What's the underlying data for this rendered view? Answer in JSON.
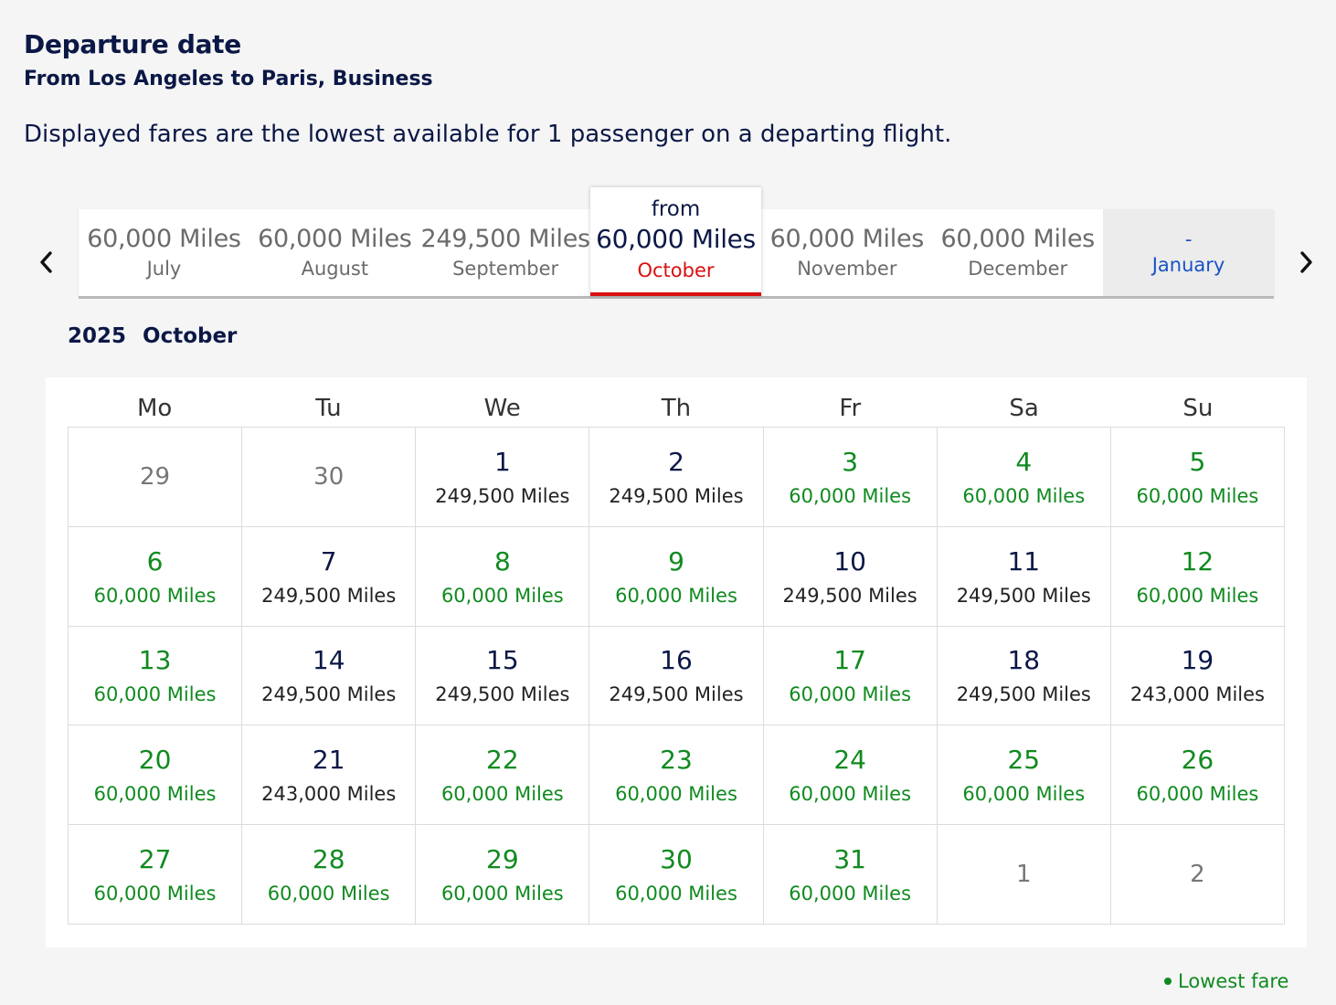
{
  "header": {
    "title": "Departure date",
    "subtitle": "From Los Angeles to Paris, Business",
    "note": "Displayed fares are the lowest available for 1 passenger on a departing flight."
  },
  "icons": {
    "prev": "chevron-left-icon",
    "next": "chevron-right-icon",
    "legend": "dot-icon"
  },
  "colors": {
    "lowest_fare": "#108a1f",
    "selected_accent": "#d90f0f",
    "link": "#1a52c4",
    "text": "#0b1846"
  },
  "months": [
    {
      "fare": "60,000 Miles",
      "name": "July"
    },
    {
      "fare": "60,000 Miles",
      "name": "August"
    },
    {
      "fare": "249,500 Miles",
      "name": "September"
    },
    {
      "from": "from",
      "fare": "60,000 Miles",
      "name": "October",
      "selected": true
    },
    {
      "fare": "60,000 Miles",
      "name": "November"
    },
    {
      "fare": "60,000 Miles",
      "name": "December"
    },
    {
      "fare": "-",
      "name": "January",
      "nodata": true
    }
  ],
  "calendar": {
    "year": "2025",
    "month": "October",
    "weekdays": [
      "Mo",
      "Tu",
      "We",
      "Th",
      "Fr",
      "Sa",
      "Su"
    ],
    "cells": [
      {
        "day": "29",
        "out": true
      },
      {
        "day": "30",
        "out": true
      },
      {
        "day": "1",
        "fare": "249,500 Miles"
      },
      {
        "day": "2",
        "fare": "249,500 Miles"
      },
      {
        "day": "3",
        "fare": "60,000 Miles",
        "low": true
      },
      {
        "day": "4",
        "fare": "60,000 Miles",
        "low": true
      },
      {
        "day": "5",
        "fare": "60,000 Miles",
        "low": true
      },
      {
        "day": "6",
        "fare": "60,000 Miles",
        "low": true
      },
      {
        "day": "7",
        "fare": "249,500 Miles"
      },
      {
        "day": "8",
        "fare": "60,000 Miles",
        "low": true
      },
      {
        "day": "9",
        "fare": "60,000 Miles",
        "low": true
      },
      {
        "day": "10",
        "fare": "249,500 Miles"
      },
      {
        "day": "11",
        "fare": "249,500 Miles"
      },
      {
        "day": "12",
        "fare": "60,000 Miles",
        "low": true
      },
      {
        "day": "13",
        "fare": "60,000 Miles",
        "low": true
      },
      {
        "day": "14",
        "fare": "249,500 Miles"
      },
      {
        "day": "15",
        "fare": "249,500 Miles"
      },
      {
        "day": "16",
        "fare": "249,500 Miles"
      },
      {
        "day": "17",
        "fare": "60,000 Miles",
        "low": true
      },
      {
        "day": "18",
        "fare": "249,500 Miles"
      },
      {
        "day": "19",
        "fare": "243,000 Miles"
      },
      {
        "day": "20",
        "fare": "60,000 Miles",
        "low": true
      },
      {
        "day": "21",
        "fare": "243,000 Miles"
      },
      {
        "day": "22",
        "fare": "60,000 Miles",
        "low": true
      },
      {
        "day": "23",
        "fare": "60,000 Miles",
        "low": true
      },
      {
        "day": "24",
        "fare": "60,000 Miles",
        "low": true
      },
      {
        "day": "25",
        "fare": "60,000 Miles",
        "low": true
      },
      {
        "day": "26",
        "fare": "60,000 Miles",
        "low": true
      },
      {
        "day": "27",
        "fare": "60,000 Miles",
        "low": true
      },
      {
        "day": "28",
        "fare": "60,000 Miles",
        "low": true
      },
      {
        "day": "29",
        "fare": "60,000 Miles",
        "low": true
      },
      {
        "day": "30",
        "fare": "60,000 Miles",
        "low": true
      },
      {
        "day": "31",
        "fare": "60,000 Miles",
        "low": true
      },
      {
        "day": "1",
        "out": true
      },
      {
        "day": "2",
        "out": true
      }
    ]
  },
  "legend": {
    "label": "Lowest fare"
  }
}
